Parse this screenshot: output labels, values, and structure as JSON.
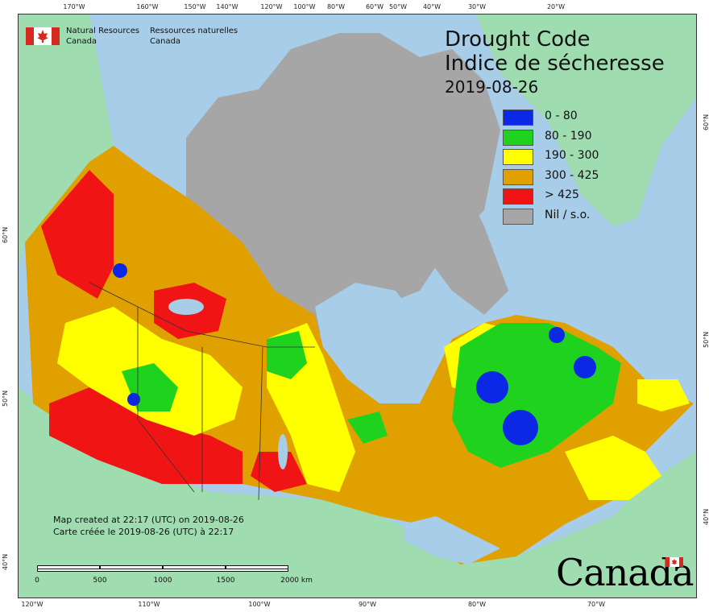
{
  "header": {
    "org_en_line1": "Natural Resources",
    "org_en_line2": "Canada",
    "org_fr_line1": "Ressources naturelles",
    "org_fr_line2": "Canada"
  },
  "title": {
    "en": "Drought Code",
    "fr": "Indice de sécheresse",
    "date": "2019-08-26"
  },
  "legend": [
    {
      "label": "0 - 80",
      "color": "#0a28e6"
    },
    {
      "label": "80 - 190",
      "color": "#1ed21e"
    },
    {
      "label": "190 - 300",
      "color": "#ffff00"
    },
    {
      "label": "300 - 425",
      "color": "#e0a000"
    },
    {
      "label": "> 425",
      "color": "#f01414"
    },
    {
      "label": "Nil / s.o.",
      "color": "#a6a6a6"
    }
  ],
  "credit": {
    "en": "Map created at 22:17 (UTC) on 2019-08-26",
    "fr": "Carte créée le 2019-08-26 (UTC) à 22:17"
  },
  "scale": {
    "labels": [
      "0",
      "500",
      "1000",
      "1500",
      "2000  km"
    ]
  },
  "graticule": {
    "top": [
      "170°W",
      "160°W",
      "150°W",
      "140°W",
      "120°W",
      "100°W",
      "80°W",
      "60°W",
      "50°W",
      "40°W",
      "30°W",
      "20°W"
    ],
    "bottom": [
      "120°W",
      "110°W",
      "100°W",
      "90°W",
      "80°W",
      "70°W"
    ],
    "left": [
      "60°N",
      "50°N",
      "40°N"
    ],
    "right": [
      "60°N",
      "50°N",
      "40°N"
    ]
  },
  "wordmark": "Canada",
  "colors": {
    "ocean": "#a8cde8",
    "foreign_land": "#9fdcb0",
    "nil": "#a6a6a6"
  }
}
